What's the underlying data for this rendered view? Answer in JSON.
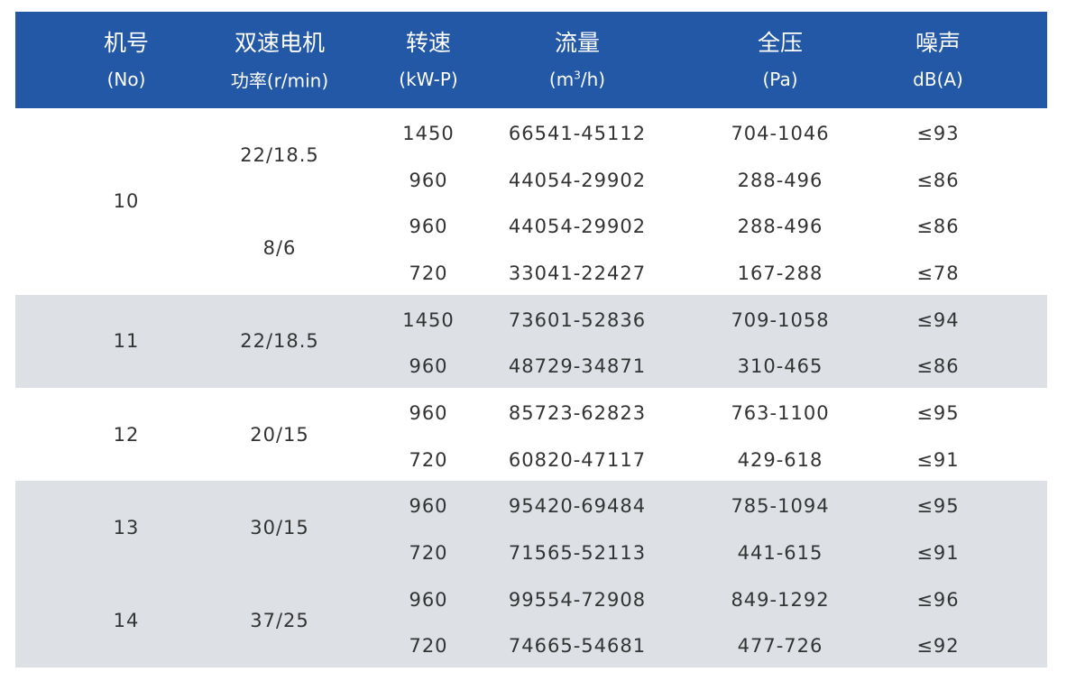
{
  "header": {
    "background": "#2258a5",
    "columns": [
      {
        "title": "机号",
        "sub": {
          "text": "(No)"
        }
      },
      {
        "title": "双速电机",
        "sub": {
          "text": "功率(r/min)"
        }
      },
      {
        "title": "转速",
        "sub": {
          "text": "(kW-P)"
        }
      },
      {
        "title": "流量",
        "sub": {
          "text": "(m",
          "sup": "3",
          "post": "/h)"
        }
      },
      {
        "title": "全压",
        "sub": {
          "text": "(Pa)"
        }
      },
      {
        "title": "噪声",
        "sub": {
          "text": "dB(A)"
        }
      }
    ]
  },
  "table": {
    "groups": [
      {
        "model": "10",
        "shade": "#ffffff",
        "powers": [
          {
            "power": "22/18.5",
            "rows": [
              [
                "1450",
                "66541-45112",
                "704-1046",
                "≤93"
              ],
              [
                "960",
                "44054-29902",
                "288-496",
                "≤86"
              ]
            ]
          },
          {
            "power": "8/6",
            "rows": [
              [
                "960",
                "44054-29902",
                "288-496",
                "≤86"
              ],
              [
                "720",
                "33041-22427",
                "167-288",
                "≤78"
              ]
            ]
          }
        ]
      },
      {
        "model": "11",
        "shade": "#dde1e6",
        "powers": [
          {
            "power": "22/18.5",
            "rows": [
              [
                "1450",
                "73601-52836",
                "709-1058",
                "≤94"
              ],
              [
                "960",
                "48729-34871",
                "310-465",
                "≤86"
              ]
            ]
          }
        ]
      },
      {
        "model": "12",
        "shade": "#ffffff",
        "powers": [
          {
            "power": "20/15",
            "rows": [
              [
                "960",
                "85723-62823",
                "763-1100",
                "≤95"
              ],
              [
                "720",
                "60820-47117",
                "429-618",
                "≤91"
              ]
            ]
          }
        ]
      },
      {
        "model": "13",
        "shade": "#dde1e6",
        "powers": [
          {
            "power": "30/15",
            "rows": [
              [
                "960",
                "95420-69484",
                "785-1094",
                "≤95"
              ],
              [
                "720",
                "71565-52113",
                "441-615",
                "≤91"
              ]
            ]
          }
        ]
      },
      {
        "model": "14",
        "shade": "#dde1e6",
        "powers": [
          {
            "power": "37/25",
            "rows": [
              [
                "960",
                "99554-72908",
                "849-1292",
                "≤96"
              ],
              [
                "720",
                "74665-54681",
                "477-726",
                "≤92"
              ]
            ]
          }
        ]
      }
    ]
  }
}
